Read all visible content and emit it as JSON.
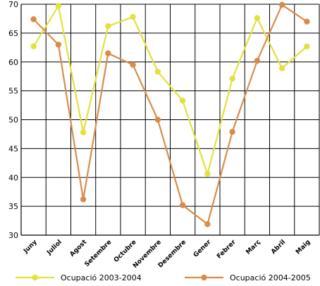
{
  "chart_data": {
    "type": "line",
    "categories": [
      "Juny",
      "Juliol",
      "Agost",
      "Setembre",
      "Octubre",
      "Novembre",
      "Desembre",
      "Gener",
      "Febrer",
      "Març",
      "Abril",
      "Maig"
    ],
    "series": [
      {
        "name": "Ocupació 2003-2004",
        "color": "#e2e23c",
        "values": [
          62.7,
          69.7,
          47.8,
          66.2,
          67.8,
          58.3,
          53.3,
          40.6,
          57.1,
          67.6,
          58.9,
          62.7
        ]
      },
      {
        "name": "Ocupació 2004-2005",
        "color": "#d98c4a",
        "values": [
          67.4,
          63.0,
          36.2,
          61.5,
          59.5,
          50.0,
          35.2,
          31.9,
          47.9,
          60.2,
          69.9,
          67.0
        ]
      }
    ],
    "yticks": [
      "30",
      "35",
      "40",
      "45",
      "50",
      "55",
      "60",
      "65",
      "70"
    ],
    "ylim": [
      30,
      70
    ],
    "grid": "horizontal and vertical",
    "legend_position": "bottom"
  }
}
